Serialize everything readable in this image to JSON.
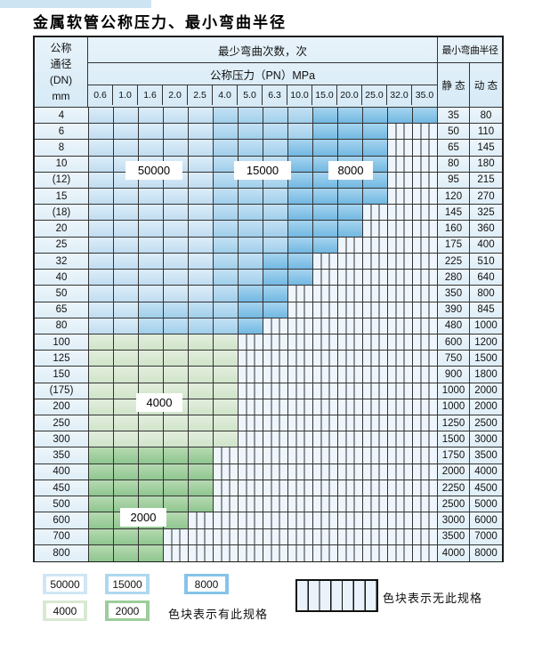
{
  "title": "金属软管公称压力、最小弯曲半径",
  "table": {
    "corner": {
      "line1": "公称",
      "line2": "通径",
      "line3": "(DN)",
      "line4": "mm"
    },
    "bend_header": "最少弯曲次数，次",
    "pressure_header": "公称压力（PN）MPa",
    "radius_header": "最小弯曲半径",
    "static_label": "静 态",
    "dynamic_label": "动 态",
    "pressure_ticks": [
      "0.6",
      "1.0",
      "1.6",
      "2.0",
      "2.5",
      "4.0",
      "5.0",
      "6.3",
      "10.0",
      "15.0",
      "20.0",
      "25.0",
      "32.0",
      "35.0"
    ],
    "band_values": {
      "b50": "50000",
      "b15": "15000",
      "b80": "8000",
      "b40": "4000",
      "b20": "2000",
      "hx": "无此规格"
    },
    "rows": [
      {
        "dn": "4",
        "static": "35",
        "dynamic": "80",
        "bands": [
          [
            "b50",
            5
          ],
          [
            "b15",
            4
          ],
          [
            "b80",
            5
          ]
        ]
      },
      {
        "dn": "6",
        "static": "50",
        "dynamic": "110",
        "bands": [
          [
            "b50",
            5
          ],
          [
            "b15",
            4
          ],
          [
            "b80",
            3
          ],
          [
            "hx",
            2
          ]
        ]
      },
      {
        "dn": "8",
        "static": "65",
        "dynamic": "145",
        "bands": [
          [
            "b50",
            5
          ],
          [
            "b15",
            3
          ],
          [
            "b80",
            4
          ],
          [
            "hx",
            2
          ]
        ]
      },
      {
        "dn": "10",
        "static": "80",
        "dynamic": "180",
        "bands": [
          [
            "b50",
            5
          ],
          [
            "b15",
            3
          ],
          [
            "b80",
            4
          ],
          [
            "hx",
            2
          ]
        ]
      },
      {
        "dn": "(12)",
        "static": "95",
        "dynamic": "215",
        "bands": [
          [
            "b50",
            5
          ],
          [
            "b15",
            3
          ],
          [
            "b80",
            4
          ],
          [
            "hx",
            2
          ]
        ]
      },
      {
        "dn": "15",
        "static": "120",
        "dynamic": "270",
        "bands": [
          [
            "b50",
            5
          ],
          [
            "b15",
            3
          ],
          [
            "b80",
            4
          ],
          [
            "hx",
            2
          ]
        ]
      },
      {
        "dn": "(18)",
        "static": "145",
        "dynamic": "325",
        "bands": [
          [
            "b50",
            5
          ],
          [
            "b15",
            3
          ],
          [
            "b80",
            3
          ],
          [
            "hx",
            3
          ]
        ]
      },
      {
        "dn": "20",
        "static": "160",
        "dynamic": "360",
        "bands": [
          [
            "b50",
            5
          ],
          [
            "b15",
            3
          ],
          [
            "b80",
            3
          ],
          [
            "hx",
            3
          ]
        ]
      },
      {
        "dn": "25",
        "static": "175",
        "dynamic": "400",
        "bands": [
          [
            "b50",
            5
          ],
          [
            "b15",
            3
          ],
          [
            "b80",
            2
          ],
          [
            "hx",
            4
          ]
        ]
      },
      {
        "dn": "32",
        "static": "225",
        "dynamic": "510",
        "bands": [
          [
            "b50",
            5
          ],
          [
            "b15",
            2
          ],
          [
            "b80",
            2
          ],
          [
            "hx",
            5
          ]
        ]
      },
      {
        "dn": "40",
        "static": "280",
        "dynamic": "640",
        "bands": [
          [
            "b50",
            5
          ],
          [
            "b15",
            2
          ],
          [
            "b80",
            2
          ],
          [
            "hx",
            5
          ]
        ]
      },
      {
        "dn": "50",
        "static": "350",
        "dynamic": "800",
        "bands": [
          [
            "b50",
            5
          ],
          [
            "b15",
            1
          ],
          [
            "b80",
            2
          ],
          [
            "hx",
            6
          ]
        ]
      },
      {
        "dn": "65",
        "static": "390",
        "dynamic": "845",
        "bands": [
          [
            "b50",
            2
          ],
          [
            "b15",
            4
          ],
          [
            "b80",
            2
          ],
          [
            "hx",
            6
          ]
        ]
      },
      {
        "dn": "80",
        "static": "480",
        "dynamic": "1000",
        "bands": [
          [
            "b50",
            2
          ],
          [
            "b15",
            4
          ],
          [
            "b80",
            1
          ],
          [
            "hx",
            7
          ]
        ]
      },
      {
        "dn": "100",
        "static": "600",
        "dynamic": "1200",
        "bands": [
          [
            "b40",
            6
          ],
          [
            "hx",
            8
          ]
        ]
      },
      {
        "dn": "125",
        "static": "750",
        "dynamic": "1500",
        "bands": [
          [
            "b40",
            6
          ],
          [
            "hx",
            8
          ]
        ]
      },
      {
        "dn": "150",
        "static": "900",
        "dynamic": "1800",
        "bands": [
          [
            "b40",
            6
          ],
          [
            "hx",
            8
          ]
        ]
      },
      {
        "dn": "(175)",
        "static": "1000",
        "dynamic": "2000",
        "bands": [
          [
            "b40",
            6
          ],
          [
            "hx",
            8
          ]
        ]
      },
      {
        "dn": "200",
        "static": "1000",
        "dynamic": "2000",
        "bands": [
          [
            "b40",
            6
          ],
          [
            "hx",
            8
          ]
        ]
      },
      {
        "dn": "250",
        "static": "1250",
        "dynamic": "2500",
        "bands": [
          [
            "b40",
            6
          ],
          [
            "hx",
            8
          ]
        ]
      },
      {
        "dn": "300",
        "static": "1500",
        "dynamic": "3000",
        "bands": [
          [
            "b40",
            6
          ],
          [
            "hx",
            8
          ]
        ]
      },
      {
        "dn": "350",
        "static": "1750",
        "dynamic": "3500",
        "bands": [
          [
            "b20",
            5
          ],
          [
            "hx",
            9
          ]
        ]
      },
      {
        "dn": "400",
        "static": "2000",
        "dynamic": "4000",
        "bands": [
          [
            "b20",
            5
          ],
          [
            "hx",
            9
          ]
        ]
      },
      {
        "dn": "450",
        "static": "2250",
        "dynamic": "4500",
        "bands": [
          [
            "b20",
            5
          ],
          [
            "hx",
            9
          ]
        ]
      },
      {
        "dn": "500",
        "static": "2500",
        "dynamic": "5000",
        "bands": [
          [
            "b20",
            5
          ],
          [
            "hx",
            9
          ]
        ]
      },
      {
        "dn": "600",
        "static": "3000",
        "dynamic": "6000",
        "bands": [
          [
            "b20",
            4
          ],
          [
            "hx",
            10
          ]
        ]
      },
      {
        "dn": "700",
        "static": "3500",
        "dynamic": "7000",
        "bands": [
          [
            "b20",
            3
          ],
          [
            "hx",
            11
          ]
        ]
      },
      {
        "dn": "800",
        "static": "4000",
        "dynamic": "8000",
        "bands": [
          [
            "b20",
            3
          ],
          [
            "hx",
            11
          ]
        ]
      }
    ]
  },
  "overlays": [
    {
      "text": "50000"
    },
    {
      "text": "15000"
    },
    {
      "text": "8000"
    },
    {
      "text": "4000"
    },
    {
      "text": "2000"
    }
  ],
  "legend": {
    "swatches": [
      {
        "label": "50000"
      },
      {
        "label": "15000"
      },
      {
        "label": "8000"
      },
      {
        "label": "4000"
      },
      {
        "label": "2000"
      }
    ],
    "available_note": "色块表示有此规格",
    "unavailable_note": "色块表示无此规格"
  },
  "colors": {
    "band_50000": "#cfe6f5",
    "band_15000": "#aed7f0",
    "band_8000": "#85c4e8",
    "band_4000": "#d9e9d3",
    "band_2000": "#9ccd9b",
    "header_bg": "#d9ecf7",
    "border": "#333333"
  }
}
